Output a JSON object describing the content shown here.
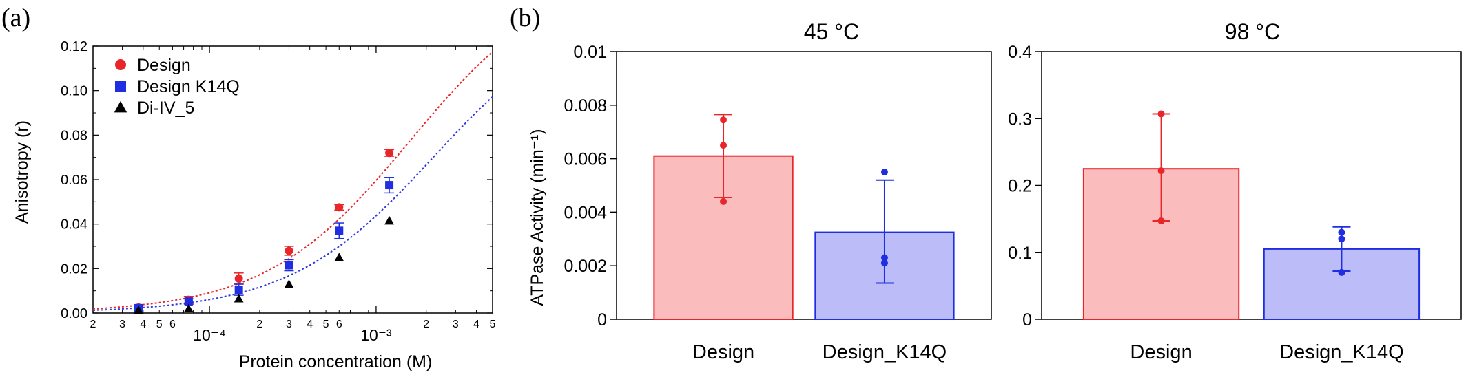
{
  "panels": [
    "(a)",
    "(b)"
  ],
  "chart_data": [
    {
      "type": "scatter",
      "panel": "(a)",
      "xlabel": "Protein concentration (M)",
      "ylabel": "Anisotropy (r)",
      "xscale": "log",
      "xlim": [
        2e-05,
        0.005
      ],
      "ylim": [
        0,
        0.12
      ],
      "yticks": [
        "0.00",
        "0.02",
        "0.04",
        "0.06",
        "0.08",
        "0.10",
        "0.12"
      ],
      "x_decade_labels": [
        "10⁻⁴",
        "10⁻³"
      ],
      "x_minor_labels": [
        "2",
        "3",
        "4",
        "5",
        "6",
        "2",
        "3",
        "4",
        "5",
        "6",
        "2",
        "3",
        "4",
        "5"
      ],
      "legend_position": "top-left",
      "series": [
        {
          "name": "Design",
          "marker": "circle",
          "color": "#e8262a",
          "fit_color": "#e8262a",
          "x": [
            3.75e-05,
            7.5e-05,
            0.00015,
            0.0003,
            0.0006,
            0.0012
          ],
          "y": [
            0.0025,
            0.006,
            0.0155,
            0.028,
            0.0475,
            0.072
          ],
          "err": [
            0.0012,
            0.0015,
            0.0025,
            0.002,
            0.0012,
            0.0015
          ],
          "fit_ymax": 0.155,
          "fit_kd": 0.0016
        },
        {
          "name": "Design K14Q",
          "marker": "square",
          "color": "#1f2ee0",
          "fit_color": "#2c3ae0",
          "x": [
            3.75e-05,
            7.5e-05,
            0.00015,
            0.0003,
            0.0006,
            0.0012
          ],
          "y": [
            0.0022,
            0.0052,
            0.0105,
            0.0215,
            0.037,
            0.0575
          ],
          "err": [
            0.0012,
            0.0012,
            0.0025,
            0.0025,
            0.0035,
            0.0035
          ],
          "fit_ymax": 0.14,
          "fit_kd": 0.0022
        },
        {
          "name": "Di-IV_5",
          "marker": "triangle",
          "color": "#000000",
          "x": [
            3.75e-05,
            7.5e-05,
            0.00015,
            0.0003,
            0.0006,
            0.0012
          ],
          "y": [
            0.0013,
            0.002,
            0.0065,
            0.013,
            0.025,
            0.0415
          ]
        }
      ]
    },
    {
      "type": "bar",
      "panel": "(b)",
      "title": "45 °C",
      "ylabel": "ATPase Activity (min⁻¹)",
      "ylim": [
        0,
        0.01
      ],
      "yticks": [
        "0",
        "0.002",
        "0.004",
        "0.006",
        "0.008",
        "0.01"
      ],
      "categories": [
        "Design",
        "Design_K14Q"
      ],
      "values": [
        0.0061,
        0.00325
      ],
      "err_low": [
        0.00455,
        0.00135
      ],
      "err_high": [
        0.00765,
        0.0052
      ],
      "points": [
        [
          0.00745,
          0.0065,
          0.0044
        ],
        [
          0.0055,
          0.0023,
          0.0021
        ]
      ],
      "fill_colors": [
        "#fbbcbe",
        "#bbbcf8"
      ],
      "edge_colors": [
        "#e8262a",
        "#1f2ee0"
      ]
    },
    {
      "type": "bar",
      "panel": "(b)",
      "title": "98 °C",
      "ylabel": "",
      "ylim": [
        0,
        0.4
      ],
      "yticks": [
        "0",
        "0.1",
        "0.2",
        "0.3",
        "0.4"
      ],
      "categories": [
        "Design",
        "Design_K14Q"
      ],
      "values": [
        0.225,
        0.105
      ],
      "err_low": [
        0.147,
        0.072
      ],
      "err_high": [
        0.307,
        0.138
      ],
      "points": [
        [
          0.307,
          0.222,
          0.147
        ],
        [
          0.13,
          0.12,
          0.07
        ]
      ],
      "fill_colors": [
        "#fbbcbe",
        "#bbbcf8"
      ],
      "edge_colors": [
        "#e8262a",
        "#1f2ee0"
      ]
    }
  ]
}
